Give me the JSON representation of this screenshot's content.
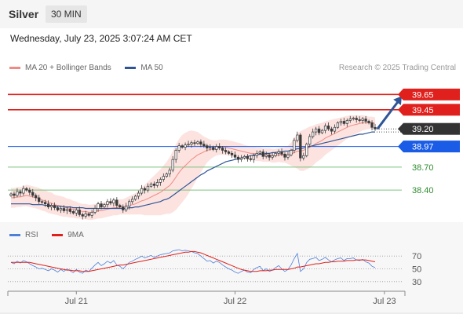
{
  "header": {
    "title": "Silver",
    "timeframe": "30 MIN"
  },
  "timestamp": "Wednesday, July 23, 2025 3:07:24 AM CET",
  "legend": {
    "ma20_bb": {
      "label": "MA 20 + Bollinger Bands",
      "color": "#f08a84"
    },
    "ma50": {
      "label": "MA 50",
      "color": "#2f5597"
    }
  },
  "copyright": "Research © 2025 Trading Central",
  "rsi_legend": {
    "rsi": {
      "label": "RSI",
      "color": "#4f7fd9"
    },
    "ma9": {
      "label": "9MA",
      "color": "#e0201c"
    }
  },
  "chart_data": [
    {
      "type": "candlestick",
      "instrument": "Silver",
      "ylim": [
        37.95,
        39.9
      ],
      "x_tick_labels": [
        "Jul 21",
        "Jul 22",
        "Jul 23"
      ],
      "levels": [
        {
          "value": 39.65,
          "label": "39.65",
          "kind": "resistance",
          "color": "#e0201c"
        },
        {
          "value": 39.45,
          "label": "39.45",
          "kind": "resistance",
          "color": "#e0201c"
        },
        {
          "value": 39.2,
          "label": "39.20",
          "kind": "last",
          "color": "#333333"
        },
        {
          "value": 38.97,
          "label": "38.97",
          "kind": "pivot",
          "color": "#1a5ce5"
        },
        {
          "value": 38.7,
          "label": "38.70",
          "kind": "support",
          "color": "#2e8b2e"
        },
        {
          "value": 38.4,
          "label": "38.40",
          "kind": "support",
          "color": "#2e8b2e"
        }
      ],
      "closes": [
        38.35,
        38.33,
        38.38,
        38.36,
        38.42,
        38.4,
        38.37,
        38.33,
        38.3,
        38.25,
        38.24,
        38.22,
        38.18,
        38.2,
        38.17,
        38.14,
        38.16,
        38.13,
        38.15,
        38.12,
        38.1,
        38.14,
        38.08,
        38.06,
        38.09,
        38.07,
        38.11,
        38.16,
        38.22,
        38.18,
        38.21,
        38.25,
        38.23,
        38.27,
        38.2,
        38.18,
        38.14,
        38.19,
        38.25,
        38.28,
        38.32,
        38.36,
        38.42,
        38.4,
        38.45,
        38.48,
        38.46,
        38.5,
        38.54,
        38.58,
        38.61,
        38.66,
        38.8,
        38.92,
        38.98,
        38.96,
        38.99,
        39.0,
        39.02,
        39.01,
        39.03,
        39.0,
        38.98,
        38.95,
        38.96,
        38.93,
        38.97,
        38.95,
        38.92,
        38.9,
        38.88,
        38.86,
        38.83,
        38.8,
        38.82,
        38.84,
        38.81,
        38.8,
        38.85,
        38.88,
        38.9,
        38.84,
        38.86,
        38.83,
        38.85,
        38.88,
        38.9,
        38.87,
        38.83,
        38.86,
        38.92,
        39.05,
        39.12,
        38.82,
        38.85,
        39.0,
        39.1,
        39.16,
        39.2,
        39.15,
        39.18,
        39.24,
        39.2,
        39.17,
        39.22,
        39.28,
        39.3,
        39.27,
        39.31,
        39.33,
        39.34,
        39.32,
        39.31,
        39.33,
        39.3,
        39.28,
        39.22,
        39.2
      ],
      "ma20": [
        38.3,
        38.3,
        38.31,
        38.31,
        38.32,
        38.33,
        38.32,
        38.31,
        38.3,
        38.29,
        38.27,
        38.26,
        38.24,
        38.23,
        38.21,
        38.2,
        38.19,
        38.18,
        38.17,
        38.16,
        38.15,
        38.14,
        38.13,
        38.12,
        38.12,
        38.11,
        38.11,
        38.12,
        38.13,
        38.13,
        38.14,
        38.15,
        38.16,
        38.17,
        38.17,
        38.18,
        38.18,
        38.19,
        38.2,
        38.21,
        38.22,
        38.24,
        38.26,
        38.27,
        38.29,
        38.31,
        38.33,
        38.35,
        38.37,
        38.4,
        38.43,
        38.46,
        38.51,
        38.57,
        38.63,
        38.68,
        38.72,
        38.76,
        38.8,
        38.83,
        38.86,
        38.88,
        38.9,
        38.92,
        38.93,
        38.94,
        38.95,
        38.96,
        38.96,
        38.96,
        38.95,
        38.94,
        38.93,
        38.92,
        38.91,
        38.9,
        38.89,
        38.88,
        38.88,
        38.87,
        38.87,
        38.86,
        38.86,
        38.86,
        38.85,
        38.85,
        38.86,
        38.86,
        38.86,
        38.86,
        38.87,
        38.89,
        38.91,
        38.91,
        38.92,
        38.94,
        38.96,
        38.98,
        39.01,
        39.03,
        39.05,
        39.08,
        39.1,
        39.12,
        39.14,
        39.16,
        39.18,
        39.2,
        39.22,
        39.24,
        39.25,
        39.26,
        39.27,
        39.28,
        39.28,
        39.28,
        39.28,
        39.27
      ],
      "ma50_values": [
        38.22,
        38.22,
        38.22,
        38.22,
        38.22,
        38.22,
        38.22,
        38.21,
        38.21,
        38.21,
        38.21,
        38.2,
        38.2,
        38.2,
        38.19,
        38.19,
        38.19,
        38.18,
        38.18,
        38.18,
        38.17,
        38.17,
        38.17,
        38.17,
        38.16,
        38.16,
        38.16,
        38.16,
        38.16,
        38.16,
        38.16,
        38.16,
        38.16,
        38.16,
        38.16,
        38.16,
        38.16,
        38.16,
        38.17,
        38.17,
        38.18,
        38.18,
        38.19,
        38.2,
        38.21,
        38.22,
        38.23,
        38.24,
        38.25,
        38.27,
        38.28,
        38.3,
        38.33,
        38.36,
        38.39,
        38.42,
        38.45,
        38.48,
        38.51,
        38.54,
        38.57,
        38.6,
        38.62,
        38.65,
        38.67,
        38.69,
        38.71,
        38.73,
        38.75,
        38.77,
        38.78,
        38.79,
        38.8,
        38.81,
        38.82,
        38.83,
        38.84,
        38.85,
        38.86,
        38.86,
        38.87,
        38.87,
        38.88,
        38.88,
        38.89,
        38.89,
        38.9,
        38.9,
        38.91,
        38.91,
        38.92,
        38.93,
        38.94,
        38.94,
        38.95,
        38.96,
        38.97,
        38.98,
        38.99,
        39.0,
        39.01,
        39.02,
        39.03,
        39.04,
        39.05,
        39.06,
        39.07,
        39.08,
        39.09,
        39.1,
        39.11,
        39.12,
        39.13,
        39.13,
        39.14,
        39.15,
        39.16,
        39.16
      ],
      "bb_width": [
        0.13,
        0.13,
        0.13,
        0.13,
        0.13,
        0.14,
        0.14,
        0.14,
        0.14,
        0.14,
        0.14,
        0.14,
        0.14,
        0.14,
        0.13,
        0.13,
        0.13,
        0.13,
        0.12,
        0.12,
        0.11,
        0.11,
        0.1,
        0.1,
        0.1,
        0.1,
        0.1,
        0.1,
        0.1,
        0.1,
        0.1,
        0.1,
        0.1,
        0.1,
        0.1,
        0.1,
        0.1,
        0.11,
        0.12,
        0.13,
        0.14,
        0.16,
        0.18,
        0.2,
        0.22,
        0.24,
        0.26,
        0.28,
        0.3,
        0.32,
        0.34,
        0.37,
        0.4,
        0.43,
        0.44,
        0.44,
        0.43,
        0.41,
        0.38,
        0.34,
        0.3,
        0.25,
        0.2,
        0.16,
        0.13,
        0.11,
        0.1,
        0.1,
        0.1,
        0.1,
        0.1,
        0.1,
        0.1,
        0.1,
        0.1,
        0.09,
        0.09,
        0.09,
        0.09,
        0.09,
        0.09,
        0.09,
        0.09,
        0.09,
        0.09,
        0.09,
        0.09,
        0.1,
        0.1,
        0.12,
        0.15,
        0.19,
        0.23,
        0.26,
        0.27,
        0.27,
        0.27,
        0.26,
        0.25,
        0.24,
        0.23,
        0.22,
        0.21,
        0.2,
        0.19,
        0.18,
        0.17,
        0.16,
        0.15,
        0.14,
        0.13,
        0.12,
        0.11,
        0.1,
        0.09,
        0.08,
        0.08,
        0.08
      ],
      "projection": {
        "from": 39.2,
        "to": 39.65
      }
    },
    {
      "type": "line",
      "title": "RSI",
      "y_ticks": [
        70,
        50,
        30
      ],
      "ylim": [
        20,
        80
      ],
      "series": [
        {
          "name": "RSI",
          "values": [
            60,
            58,
            62,
            59,
            63,
            61,
            58,
            55,
            53,
            50,
            51,
            49,
            47,
            50,
            48,
            45,
            49,
            46,
            50,
            47,
            44,
            49,
            45,
            43,
            48,
            46,
            51,
            56,
            60,
            55,
            58,
            62,
            59,
            63,
            56,
            54,
            50,
            55,
            60,
            62,
            65,
            67,
            70,
            67,
            69,
            71,
            68,
            70,
            72,
            73,
            74,
            75,
            78,
            79,
            80,
            78,
            79,
            78,
            77,
            75,
            74,
            70,
            66,
            62,
            63,
            59,
            62,
            60,
            56,
            53,
            50,
            48,
            45,
            43,
            46,
            48,
            45,
            44,
            49,
            52,
            54,
            47,
            50,
            46,
            48,
            52,
            55,
            50,
            46,
            49,
            56,
            66,
            74,
            46,
            50,
            60,
            65,
            66,
            68,
            63,
            65,
            68,
            64,
            61,
            64,
            66,
            67,
            63,
            66,
            66,
            67,
            64,
            63,
            65,
            61,
            59,
            54,
            52
          ]
        },
        {
          "name": "9MA",
          "values": [
            60,
            60,
            60,
            60,
            60,
            60,
            60,
            59,
            58,
            57,
            56,
            55,
            54,
            53,
            52,
            51,
            50,
            49,
            48,
            48,
            47,
            47,
            47,
            46,
            46,
            46,
            47,
            48,
            49,
            50,
            51,
            52,
            53,
            54,
            55,
            56,
            56,
            57,
            58,
            59,
            60,
            61,
            62,
            63,
            64,
            65,
            66,
            67,
            68,
            69,
            70,
            71,
            72,
            73,
            74,
            75,
            76,
            76,
            77,
            77,
            76,
            75,
            73,
            71,
            69,
            67,
            65,
            63,
            61,
            59,
            57,
            55,
            53,
            51,
            49,
            48,
            47,
            46,
            46,
            46,
            47,
            47,
            47,
            48,
            48,
            49,
            49,
            49,
            49,
            49,
            50,
            51,
            53,
            53,
            54,
            55,
            56,
            57,
            58,
            58,
            59,
            60,
            60,
            61,
            61,
            62,
            62,
            62,
            63,
            63,
            63,
            64,
            64,
            64,
            64,
            63,
            62,
            61
          ]
        }
      ],
      "x_tick_labels": [
        "Jul 21",
        "Jul 22",
        "Jul 23"
      ]
    }
  ]
}
